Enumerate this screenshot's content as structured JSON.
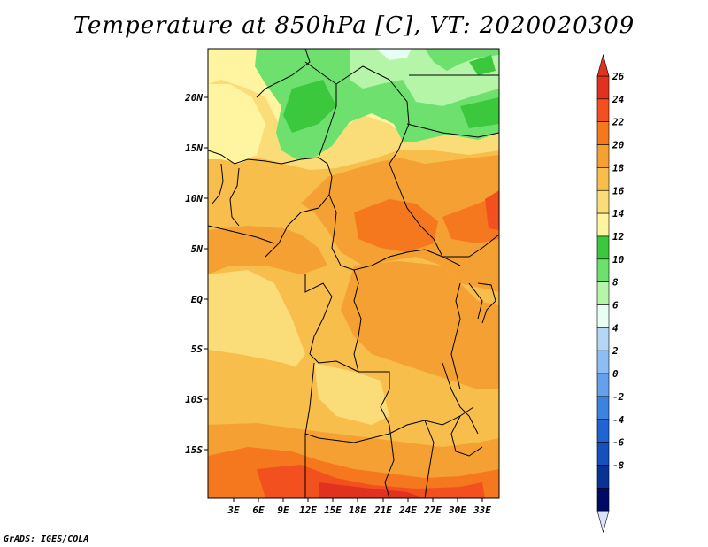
{
  "title": "Temperature at 850hPa [C], VT: 2020020309",
  "credit": "GrADS: IGES/COLA",
  "lat_labels": [
    "20N",
    "15N",
    "10N",
    "5N",
    "EQ",
    "5S",
    "10S",
    "15S"
  ],
  "lon_labels": [
    "3E",
    "6E",
    "9E",
    "12E",
    "15E",
    "18E",
    "21E",
    "24E",
    "27E",
    "30E",
    "33E"
  ],
  "colorbar": {
    "labels": [
      "26",
      "24",
      "22",
      "20",
      "18",
      "16",
      "14",
      "12",
      "10",
      "8",
      "6",
      "4",
      "2",
      "0",
      "-2",
      "-4",
      "-6",
      "-8"
    ],
    "colors": [
      "#e0321e",
      "#f2501e",
      "#f5781e",
      "#f5a032",
      "#f7be4b",
      "#fadc78",
      "#fff5a0",
      "#3cc83c",
      "#6ee06e",
      "#b4f5a8",
      "#e6fff2",
      "#b4d7f5",
      "#8cbef5",
      "#64a0eb",
      "#3c82e1",
      "#1e64d2",
      "#1450be",
      "#0a3296",
      "#000a64"
    ],
    "arrow_low_color": "#dce1fa",
    "arrow_high_color": "#e0321e"
  }
}
